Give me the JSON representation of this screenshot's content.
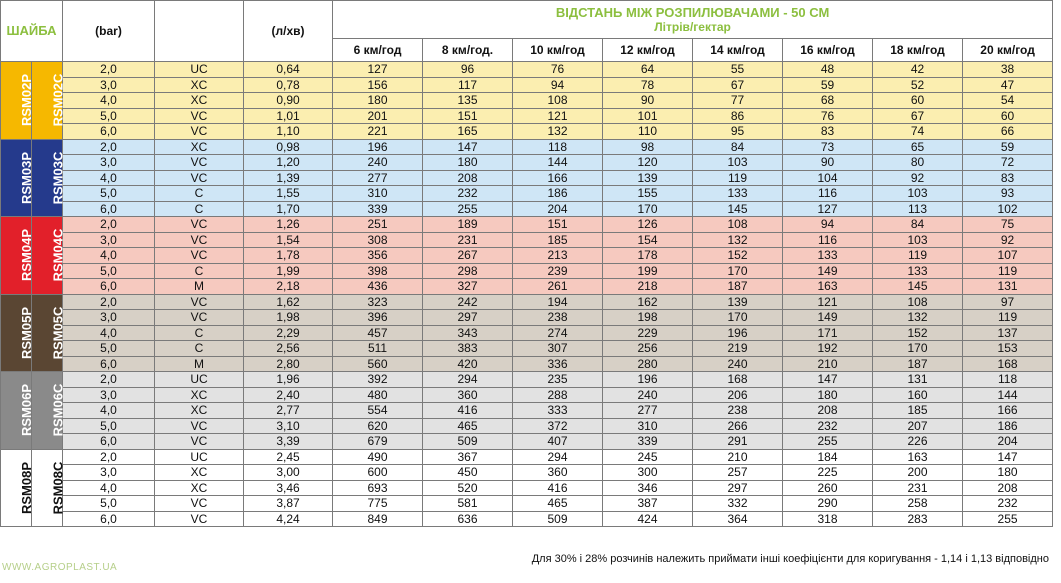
{
  "header": {
    "shaiba": "ШАЙБА",
    "bar": "(bar)",
    "flow": "(л/хв)",
    "title": "ВІДСТАНЬ МІЖ РОЗПИЛЮВАЧАМИ - 50 СМ",
    "subtitle": "Літрів/гектар",
    "speeds": [
      "6 км/год",
      "8 км/год.",
      "10 км/год",
      "12 км/год",
      "14 км/год",
      "16 км/год",
      "18 км/год",
      "20 км/год"
    ]
  },
  "groups": [
    {
      "p": "RSM02P",
      "c": "RSM02C",
      "color": "#f6b800",
      "theme": "g-yellow",
      "rows": [
        [
          "2,0",
          "UC",
          "0,64",
          "127",
          "96",
          "76",
          "64",
          "55",
          "48",
          "42",
          "38"
        ],
        [
          "3,0",
          "XC",
          "0,78",
          "156",
          "117",
          "94",
          "78",
          "67",
          "59",
          "52",
          "47"
        ],
        [
          "4,0",
          "XC",
          "0,90",
          "180",
          "135",
          "108",
          "90",
          "77",
          "68",
          "60",
          "54"
        ],
        [
          "5,0",
          "VC",
          "1,01",
          "201",
          "151",
          "121",
          "101",
          "86",
          "76",
          "67",
          "60"
        ],
        [
          "6,0",
          "VC",
          "1,10",
          "221",
          "165",
          "132",
          "110",
          "95",
          "83",
          "74",
          "66"
        ]
      ]
    },
    {
      "p": "RSM03P",
      "c": "RSM03C",
      "color": "#253a8c",
      "theme": "g-blue",
      "rows": [
        [
          "2,0",
          "XC",
          "0,98",
          "196",
          "147",
          "118",
          "98",
          "84",
          "73",
          "65",
          "59"
        ],
        [
          "3,0",
          "VC",
          "1,20",
          "240",
          "180",
          "144",
          "120",
          "103",
          "90",
          "80",
          "72"
        ],
        [
          "4,0",
          "VC",
          "1,39",
          "277",
          "208",
          "166",
          "139",
          "119",
          "104",
          "92",
          "83"
        ],
        [
          "5,0",
          "C",
          "1,55",
          "310",
          "232",
          "186",
          "155",
          "133",
          "116",
          "103",
          "93"
        ],
        [
          "6,0",
          "C",
          "1,70",
          "339",
          "255",
          "204",
          "170",
          "145",
          "127",
          "113",
          "102"
        ]
      ]
    },
    {
      "p": "RSM04P",
      "c": "RSM04C",
      "color": "#e2202a",
      "theme": "g-red",
      "rows": [
        [
          "2,0",
          "VC",
          "1,26",
          "251",
          "189",
          "151",
          "126",
          "108",
          "94",
          "84",
          "75"
        ],
        [
          "3,0",
          "VC",
          "1,54",
          "308",
          "231",
          "185",
          "154",
          "132",
          "116",
          "103",
          "92"
        ],
        [
          "4,0",
          "VC",
          "1,78",
          "356",
          "267",
          "213",
          "178",
          "152",
          "133",
          "119",
          "107"
        ],
        [
          "5,0",
          "C",
          "1,99",
          "398",
          "298",
          "239",
          "199",
          "170",
          "149",
          "133",
          "119"
        ],
        [
          "6,0",
          "M",
          "2,18",
          "436",
          "327",
          "261",
          "218",
          "187",
          "163",
          "145",
          "131"
        ]
      ]
    },
    {
      "p": "RSM05P",
      "c": "RSM05C",
      "color": "#5a4633",
      "theme": "g-brown",
      "rows": [
        [
          "2,0",
          "VC",
          "1,62",
          "323",
          "242",
          "194",
          "162",
          "139",
          "121",
          "108",
          "97"
        ],
        [
          "3,0",
          "VC",
          "1,98",
          "396",
          "297",
          "238",
          "198",
          "170",
          "149",
          "132",
          "119"
        ],
        [
          "4,0",
          "C",
          "2,29",
          "457",
          "343",
          "274",
          "229",
          "196",
          "171",
          "152",
          "137"
        ],
        [
          "5,0",
          "C",
          "2,56",
          "511",
          "383",
          "307",
          "256",
          "219",
          "192",
          "170",
          "153"
        ],
        [
          "6,0",
          "M",
          "2,80",
          "560",
          "420",
          "336",
          "280",
          "240",
          "210",
          "187",
          "168"
        ]
      ]
    },
    {
      "p": "RSM06P",
      "c": "RSM06C",
      "color": "#8a8a8a",
      "theme": "g-grey",
      "rows": [
        [
          "2,0",
          "UC",
          "1,96",
          "392",
          "294",
          "235",
          "196",
          "168",
          "147",
          "131",
          "118"
        ],
        [
          "3,0",
          "XC",
          "2,40",
          "480",
          "360",
          "288",
          "240",
          "206",
          "180",
          "160",
          "144"
        ],
        [
          "4,0",
          "XC",
          "2,77",
          "554",
          "416",
          "333",
          "277",
          "238",
          "208",
          "185",
          "166"
        ],
        [
          "5,0",
          "VC",
          "3,10",
          "620",
          "465",
          "372",
          "310",
          "266",
          "232",
          "207",
          "186"
        ],
        [
          "6,0",
          "VC",
          "3,39",
          "679",
          "509",
          "407",
          "339",
          "291",
          "255",
          "226",
          "204"
        ]
      ]
    },
    {
      "p": "RSM08P",
      "c": "RSM08C",
      "color": "#ffffff",
      "theme": "g-white",
      "textDark": true,
      "rows": [
        [
          "2,0",
          "UC",
          "2,45",
          "490",
          "367",
          "294",
          "245",
          "210",
          "184",
          "163",
          "147"
        ],
        [
          "3,0",
          "XC",
          "3,00",
          "600",
          "450",
          "360",
          "300",
          "257",
          "225",
          "200",
          "180"
        ],
        [
          "4,0",
          "XC",
          "3,46",
          "693",
          "520",
          "416",
          "346",
          "297",
          "260",
          "231",
          "208"
        ],
        [
          "5,0",
          "VC",
          "3,87",
          "775",
          "581",
          "465",
          "387",
          "332",
          "290",
          "258",
          "232"
        ],
        [
          "6,0",
          "VC",
          "4,24",
          "849",
          "636",
          "509",
          "424",
          "364",
          "318",
          "283",
          "255"
        ]
      ]
    }
  ],
  "footer": {
    "note": "Для 30% і 28% розчинів належить приймати інші коефіцієнти для коригування - 1,14 і 1,13 відповідно",
    "watermark": "WWW.AGROPLAST.UA"
  }
}
